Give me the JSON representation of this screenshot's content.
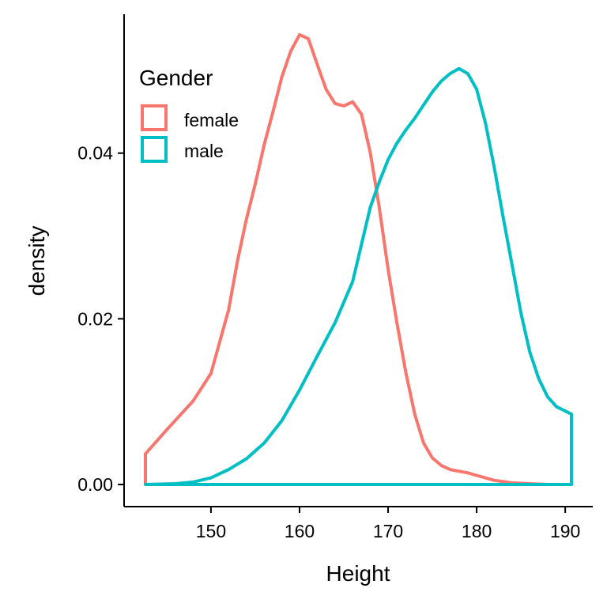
{
  "chart_data": {
    "type": "area",
    "title": "",
    "xlabel": "Height",
    "ylabel": "density",
    "xlim": [
      142.6,
      190.7
    ],
    "ylim": [
      0,
      0.054
    ],
    "grid": false,
    "x_ticks": [
      150,
      160,
      170,
      180,
      190
    ],
    "x_tick_labels": [
      "150",
      "160",
      "170",
      "180",
      "190"
    ],
    "y_ticks": [
      0,
      0.02,
      0.04
    ],
    "y_tick_labels": [
      "0.00",
      "0.02",
      "0.04"
    ],
    "legend": {
      "title": "Gender",
      "position": "top-left"
    },
    "series": [
      {
        "name": "female",
        "color": "#F8766D",
        "x": [
          142.6,
          145,
          148,
          150,
          152,
          153,
          154,
          155,
          156,
          157,
          158,
          159,
          160,
          161,
          162,
          163,
          164,
          165,
          166,
          167,
          168,
          169,
          170,
          171,
          172,
          173,
          174,
          175,
          176,
          177,
          178,
          179,
          180,
          182,
          184,
          186,
          188,
          190.7
        ],
        "y": [
          0.0037,
          0.0066,
          0.0101,
          0.0134,
          0.0211,
          0.027,
          0.032,
          0.0363,
          0.041,
          0.045,
          0.0492,
          0.0523,
          0.0543,
          0.0538,
          0.0507,
          0.0477,
          0.046,
          0.0457,
          0.0462,
          0.0447,
          0.04,
          0.0335,
          0.026,
          0.0195,
          0.0135,
          0.0085,
          0.005,
          0.0032,
          0.0023,
          0.0018,
          0.0016,
          0.0014,
          0.0011,
          0.0005,
          0.0002,
          0.0001,
          0.0,
          0.0
        ]
      },
      {
        "name": "male",
        "color": "#00BFC4",
        "x": [
          142.6,
          146,
          148,
          150,
          152,
          154,
          156,
          158,
          160,
          162,
          164,
          166,
          167,
          168,
          169,
          170,
          171,
          172,
          173,
          174,
          175,
          176,
          177,
          178,
          179,
          180,
          181,
          182,
          183,
          184,
          185,
          186,
          187,
          188,
          189,
          190.7
        ],
        "y": [
          0.0,
          0.0001,
          0.0003,
          0.0008,
          0.0018,
          0.0031,
          0.005,
          0.0077,
          0.0114,
          0.0155,
          0.0195,
          0.0245,
          0.029,
          0.0335,
          0.0365,
          0.0392,
          0.0412,
          0.0428,
          0.0442,
          0.0458,
          0.0474,
          0.0487,
          0.0496,
          0.0502,
          0.0496,
          0.0477,
          0.0436,
          0.0382,
          0.0322,
          0.0265,
          0.0207,
          0.016,
          0.0128,
          0.0106,
          0.0094,
          0.0085
        ]
      }
    ]
  }
}
